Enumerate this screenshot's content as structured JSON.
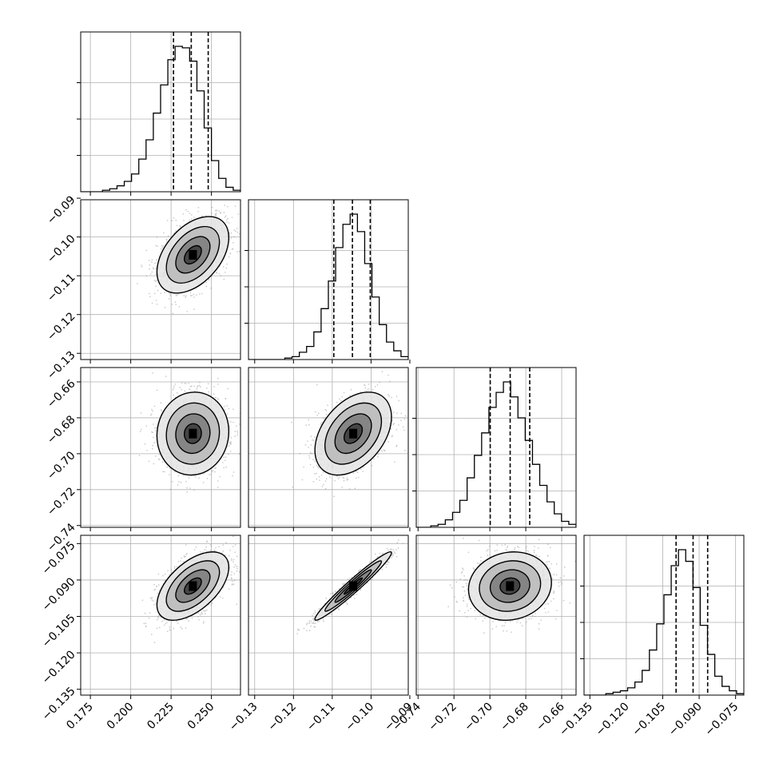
{
  "chart_data": {
    "type": "corner",
    "parameters": [
      {
        "ticks": [
          0.175,
          0.2,
          0.225,
          0.25
        ],
        "tick_labels": [
          "0.175",
          "0.200",
          "0.225",
          "0.250"
        ],
        "range": [
          0.169,
          0.268
        ],
        "quantiles": [
          0.2265,
          0.2375,
          0.248
        ]
      },
      {
        "ticks": [
          -0.13,
          -0.12,
          -0.11,
          -0.1,
          -0.09
        ],
        "tick_labels": [
          "−0.13",
          "−0.12",
          "−0.11",
          "−0.10",
          "−0.09"
        ],
        "range": [
          -0.1316,
          -0.0904
        ],
        "quantiles": [
          -0.1096,
          -0.1048,
          -0.1002
        ]
      },
      {
        "ticks": [
          -0.74,
          -0.72,
          -0.7,
          -0.68,
          -0.66
        ],
        "tick_labels": [
          "−0.74",
          "−0.72",
          "−0.70",
          "−0.68",
          "−0.66"
        ],
        "range": [
          -0.741,
          -0.652
        ],
        "quantiles": [
          -0.6998,
          -0.6887,
          -0.6778
        ]
      },
      {
        "ticks": [
          -0.135,
          -0.12,
          -0.105,
          -0.09,
          -0.075
        ],
        "tick_labels": [
          "−0.135",
          "−0.120",
          "−0.105",
          "−0.090",
          "−0.075"
        ],
        "range": [
          -0.1374,
          -0.0716
        ],
        "quantiles": [
          -0.0995,
          -0.0925,
          -0.0865
        ]
      }
    ],
    "means": [
      0.2385,
      -0.1046,
      -0.6888,
      -0.0925
    ],
    "stds": [
      0.0106,
      0.0047,
      0.011,
      0.0067
    ],
    "correlations": {
      "0-1": 0.45,
      "0-2": 0.05,
      "0-3": 0.55,
      "1-2": 0.4,
      "1-3": 0.97,
      "2-3": 0.1
    },
    "histograms": [
      [
        0,
        0,
        0,
        1,
        2,
        4,
        7,
        12,
        22,
        35,
        53,
        72,
        89,
        98,
        97,
        88,
        68,
        43,
        21,
        9,
        3,
        1
      ],
      [
        0,
        0,
        0,
        0,
        0,
        1,
        2,
        5,
        9,
        19,
        35,
        54,
        77,
        93,
        100,
        88,
        66,
        43,
        24,
        12,
        6,
        2
      ],
      [
        0,
        0,
        1,
        2,
        5,
        10,
        18,
        33,
        48,
        63,
        80,
        90,
        97,
        87,
        73,
        58,
        42,
        28,
        17,
        9,
        4,
        2
      ],
      [
        0,
        0,
        0,
        1,
        2,
        3,
        5,
        9,
        17,
        31,
        49,
        69,
        89,
        100,
        92,
        74,
        48,
        28,
        13,
        6,
        3,
        1
      ]
    ],
    "grid": true,
    "contours": true
  }
}
